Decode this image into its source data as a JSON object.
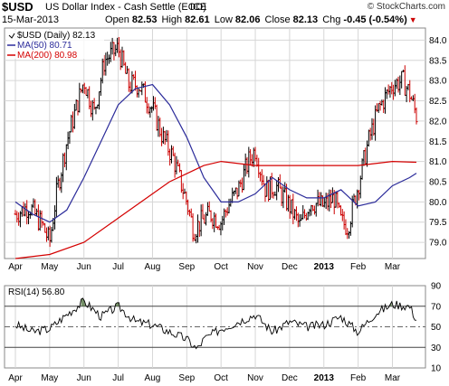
{
  "header": {
    "symbol": "$USD",
    "name": "US Dollar Index - Cash Settle (EOD)",
    "exchange": "ICE",
    "copyright": "© StockCharts.com",
    "date": "15-Mar-2013",
    "open_label": "Open",
    "open": "82.53",
    "high_label": "High",
    "high": "82.61",
    "low_label": "Low",
    "low": "82.06",
    "close_label": "Close",
    "close": "82.13",
    "chg_label": "Chg",
    "chg": "-0.45 (-0.54%)",
    "chg_arrow": "▼"
  },
  "legend": {
    "main": "$USD (Daily) 82.13",
    "ma50": "MA(50) 80.71",
    "ma200": "MA(200) 80.98"
  },
  "rsi_legend": "RSI(14) 56.80",
  "colors": {
    "price": "#000000",
    "price_down": "#cc0000",
    "ma50": "#2b2b9a",
    "ma200": "#d40000",
    "rsi_fill_over": "#5a7a4a",
    "rsi_fill_under": "#a06a6a",
    "grid": "#d6d6d6"
  },
  "chart_data": [
    {
      "type": "line",
      "title": "$USD (Daily)",
      "x_ticks": [
        "Apr",
        "May",
        "Jun",
        "Jul",
        "Aug",
        "Sep",
        "Oct",
        "Nov",
        "Dec",
        "2013",
        "Feb",
        "Mar"
      ],
      "ylim": [
        78.6,
        84.3
      ],
      "y_ticks": [
        "79.0",
        "79.5",
        "80.0",
        "80.5",
        "81.0",
        "81.5",
        "82.0",
        "82.5",
        "83.0",
        "83.5",
        "84.0"
      ],
      "grid": true,
      "series": [
        {
          "name": "$USD (Daily)",
          "x": [
            0,
            0.4,
            0.8,
            1,
            1.2,
            1.5,
            1.8,
            2,
            2.3,
            2.6,
            3,
            3.3,
            3.6,
            4,
            4.3,
            4.6,
            5,
            5.2,
            5.4,
            5.7,
            6,
            6.2,
            6.5,
            6.8,
            7,
            7.3,
            7.6,
            8,
            8.3,
            8.6,
            9,
            9.3,
            9.5,
            9.7,
            10,
            10.3,
            10.6,
            11,
            11.3,
            11.5,
            11.7
          ],
          "y": [
            79.7,
            79.9,
            79.4,
            79.0,
            80.2,
            81.5,
            82.4,
            83.0,
            82.2,
            83.5,
            83.8,
            82.9,
            82.9,
            82.3,
            81.6,
            81.1,
            80.0,
            79.3,
            79.5,
            79.7,
            79.5,
            79.9,
            80.3,
            81.0,
            81.3,
            80.3,
            80.4,
            79.9,
            79.4,
            80.0,
            79.9,
            80.1,
            79.5,
            79.4,
            80.4,
            81.5,
            82.3,
            82.9,
            83.0,
            82.7,
            82.13
          ]
        },
        {
          "name": "MA(50)",
          "x": [
            0,
            0.5,
            1,
            1.5,
            2,
            2.5,
            3,
            3.5,
            4,
            4.5,
            5,
            5.5,
            6,
            6.5,
            7,
            7.5,
            8,
            8.5,
            9,
            9.5,
            10,
            10.5,
            11,
            11.5,
            11.7
          ],
          "y": [
            80.0,
            79.7,
            79.5,
            79.8,
            80.6,
            81.5,
            82.4,
            82.8,
            82.9,
            82.4,
            81.6,
            80.6,
            80.0,
            80.0,
            80.2,
            80.6,
            80.3,
            80.1,
            80.1,
            80.3,
            79.9,
            80.0,
            80.4,
            80.6,
            80.71
          ]
        },
        {
          "name": "MA(200)",
          "x": [
            0,
            1,
            2,
            3,
            4,
            4.5,
            5,
            5.5,
            6,
            7,
            8,
            9,
            10,
            11,
            11.7
          ],
          "y": [
            78.6,
            78.7,
            79.0,
            79.6,
            80.2,
            80.5,
            80.7,
            80.9,
            81.0,
            80.9,
            80.9,
            80.9,
            80.9,
            81.0,
            80.98
          ]
        }
      ]
    },
    {
      "type": "line",
      "title": "RSI(14)",
      "ylim": [
        10,
        90
      ],
      "y_ticks": [
        "10",
        "30",
        "50",
        "70",
        "90"
      ],
      "x_ticks": [
        "Apr",
        "May",
        "Jun",
        "Jul",
        "Aug",
        "Sep",
        "Oct",
        "Nov",
        "Dec",
        "2013",
        "Feb",
        "Mar"
      ],
      "series": [
        {
          "name": "RSI(14)",
          "x": [
            0,
            0.5,
            1,
            1.5,
            2,
            2.5,
            3,
            3.5,
            4,
            4.5,
            5,
            5.3,
            5.5,
            6,
            6.5,
            7,
            7.5,
            8,
            8.5,
            9,
            9.5,
            10,
            10.5,
            11,
            11.5,
            11.7
          ],
          "y": [
            52,
            45,
            48,
            62,
            75,
            60,
            70,
            55,
            52,
            45,
            38,
            28,
            38,
            48,
            55,
            62,
            45,
            55,
            50,
            52,
            60,
            45,
            63,
            72,
            70,
            56.8
          ]
        }
      ]
    }
  ]
}
